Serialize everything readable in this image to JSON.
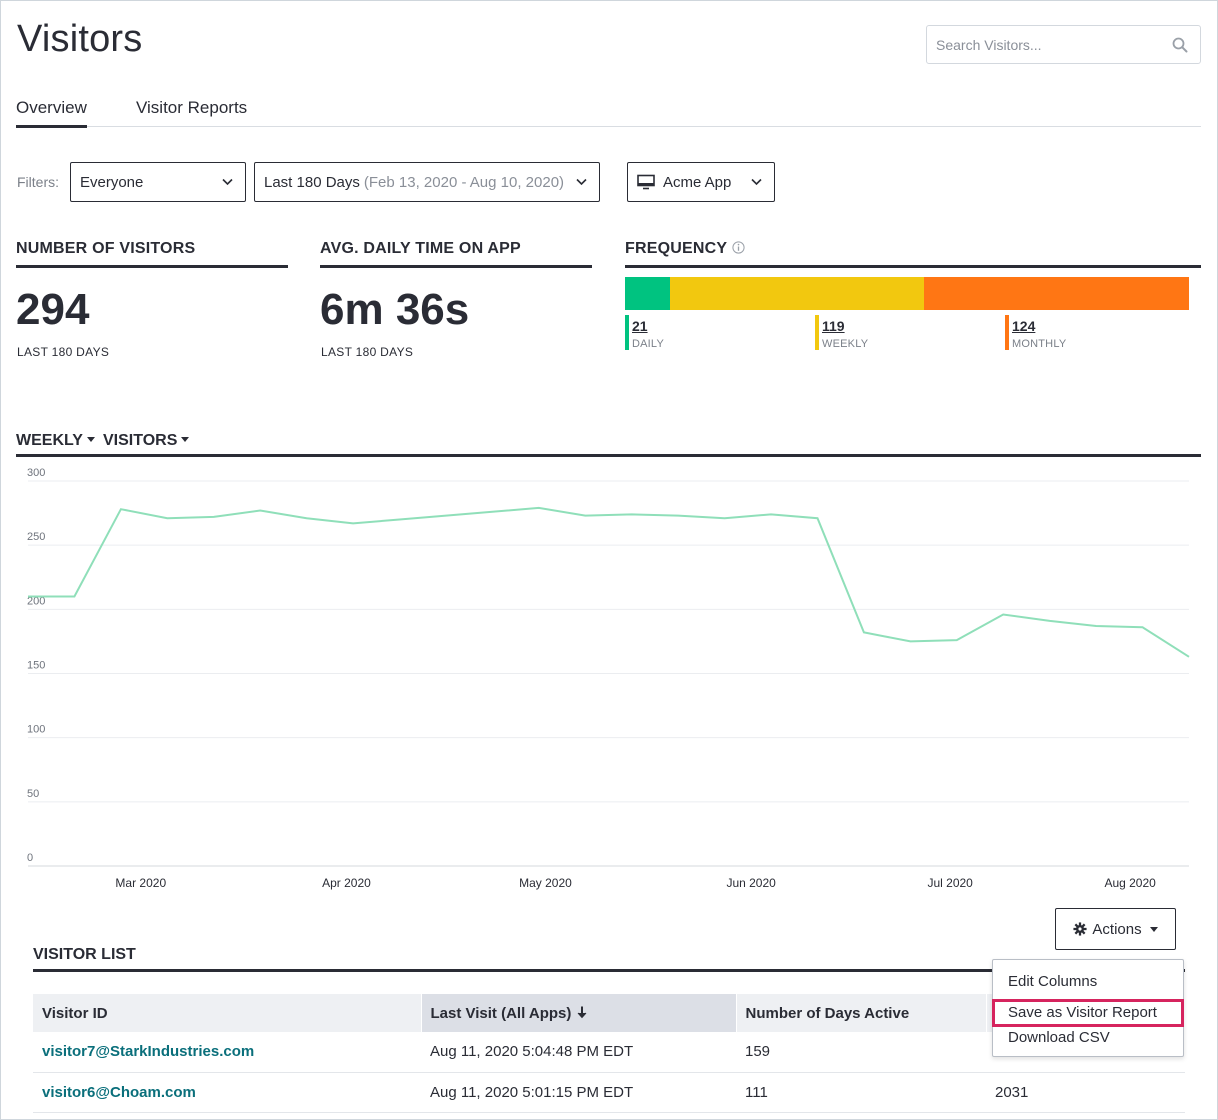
{
  "header": {
    "title": "Visitors",
    "search_placeholder": "Search Visitors..."
  },
  "tabs": [
    {
      "label": "Overview",
      "active": true
    },
    {
      "label": "Visitor Reports",
      "active": false
    }
  ],
  "filters": {
    "label": "Filters:",
    "segment": "Everyone",
    "date_range": "Last 180 Days",
    "date_detail": "(Feb 13, 2020 - Aug 10, 2020)",
    "app": "Acme App"
  },
  "kpis": {
    "visitors": {
      "title": "NUMBER OF VISITORS",
      "value": "294",
      "sub": "LAST 180 DAYS"
    },
    "time": {
      "title": "AVG. DAILY TIME ON APP",
      "value": "6m 36s",
      "sub": "LAST 180 DAYS"
    }
  },
  "frequency": {
    "title": "FREQUENCY",
    "items": [
      {
        "value": 21,
        "label": "DAILY",
        "color": "#00c380"
      },
      {
        "value": 119,
        "label": "WEEKLY",
        "color": "#f2c80f"
      },
      {
        "value": 124,
        "label": "MONTHLY",
        "color": "#ff7614"
      }
    ]
  },
  "chart_header": {
    "period": "WEEKLY",
    "metric": "VISITORS"
  },
  "chart_data": {
    "type": "line",
    "series": [
      {
        "values": [
          210,
          210,
          278,
          271,
          272,
          277,
          271,
          267,
          270,
          273,
          276,
          279,
          273,
          274,
          273,
          271,
          274,
          271,
          182,
          175,
          176,
          196,
          191,
          187,
          186,
          163
        ]
      }
    ],
    "x": [
      "2020-02-13",
      "2020-02-20",
      "2020-02-27",
      "2020-03-05",
      "2020-03-12",
      "2020-03-19",
      "2020-03-26",
      "2020-04-02",
      "2020-04-09",
      "2020-04-16",
      "2020-04-23",
      "2020-04-30",
      "2020-05-07",
      "2020-05-14",
      "2020-05-21",
      "2020-05-28",
      "2020-06-04",
      "2020-06-11",
      "2020-06-18",
      "2020-06-25",
      "2020-07-02",
      "2020-07-09",
      "2020-07-16",
      "2020-07-23",
      "2020-07-30",
      "2020-08-06"
    ],
    "y_ticks": [
      0,
      50,
      100,
      150,
      200,
      250,
      300
    ],
    "ylim": [
      0,
      300
    ],
    "x_tick_labels": [
      {
        "label": "Mar 2020",
        "at": "2020-03-01"
      },
      {
        "label": "Apr 2020",
        "at": "2020-04-01"
      },
      {
        "label": "May 2020",
        "at": "2020-05-01"
      },
      {
        "label": "Jun 2020",
        "at": "2020-06-01"
      },
      {
        "label": "Jul 2020",
        "at": "2020-07-01"
      },
      {
        "label": "Aug 2020",
        "at": "2020-08-01"
      }
    ],
    "grid": true,
    "line_color": "#8fdfb9"
  },
  "actions": {
    "label": "Actions"
  },
  "menu": {
    "items": [
      "Edit Columns",
      "Save as Visitor Report",
      "Download CSV"
    ]
  },
  "visitor_list": {
    "title": "VISITOR LIST",
    "columns": [
      "Visitor ID",
      "Last Visit (All Apps)",
      "Number of Days Active",
      ""
    ],
    "rows": [
      [
        "visitor7@StarkIndustries.com",
        "Aug 11, 2020 5:04:48 PM EDT",
        "159",
        ""
      ],
      [
        "visitor6@Choam.com",
        "Aug 11, 2020 5:01:15 PM EDT",
        "111",
        "2031"
      ]
    ]
  }
}
